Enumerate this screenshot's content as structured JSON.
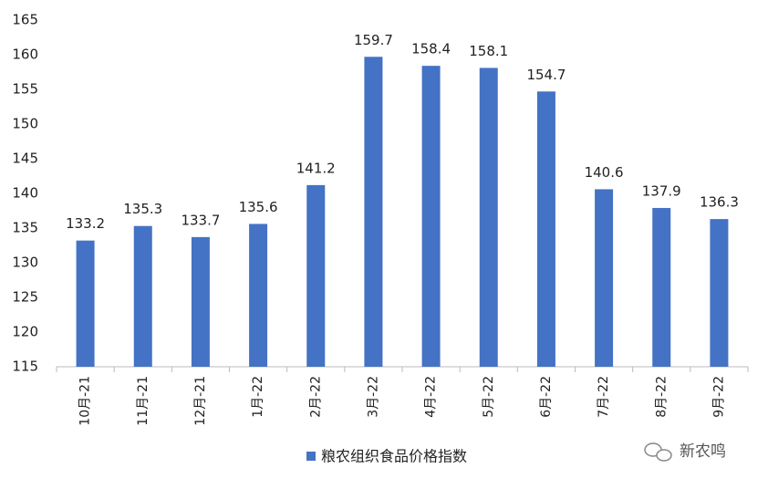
{
  "chart_data": {
    "type": "bar",
    "categories": [
      "10月-21",
      "11月-21",
      "12月-21",
      "1月-22",
      "2月-22",
      "3月-22",
      "4月-22",
      "5月-22",
      "6月-22",
      "7月-22",
      "8月-22",
      "9月-22"
    ],
    "series": [
      {
        "name": "粮农组织食品价格指数",
        "color": "#4472c4",
        "values": [
          133.2,
          135.3,
          133.7,
          135.6,
          141.2,
          159.7,
          158.4,
          158.1,
          154.7,
          140.6,
          137.9,
          136.3
        ]
      }
    ],
    "ylim": [
      115,
      165
    ],
    "yticks": [
      115,
      120,
      125,
      130,
      135,
      140,
      145,
      150,
      155,
      160,
      165
    ],
    "grid": false,
    "legend": "bottom",
    "watermark": "新农鸣"
  }
}
